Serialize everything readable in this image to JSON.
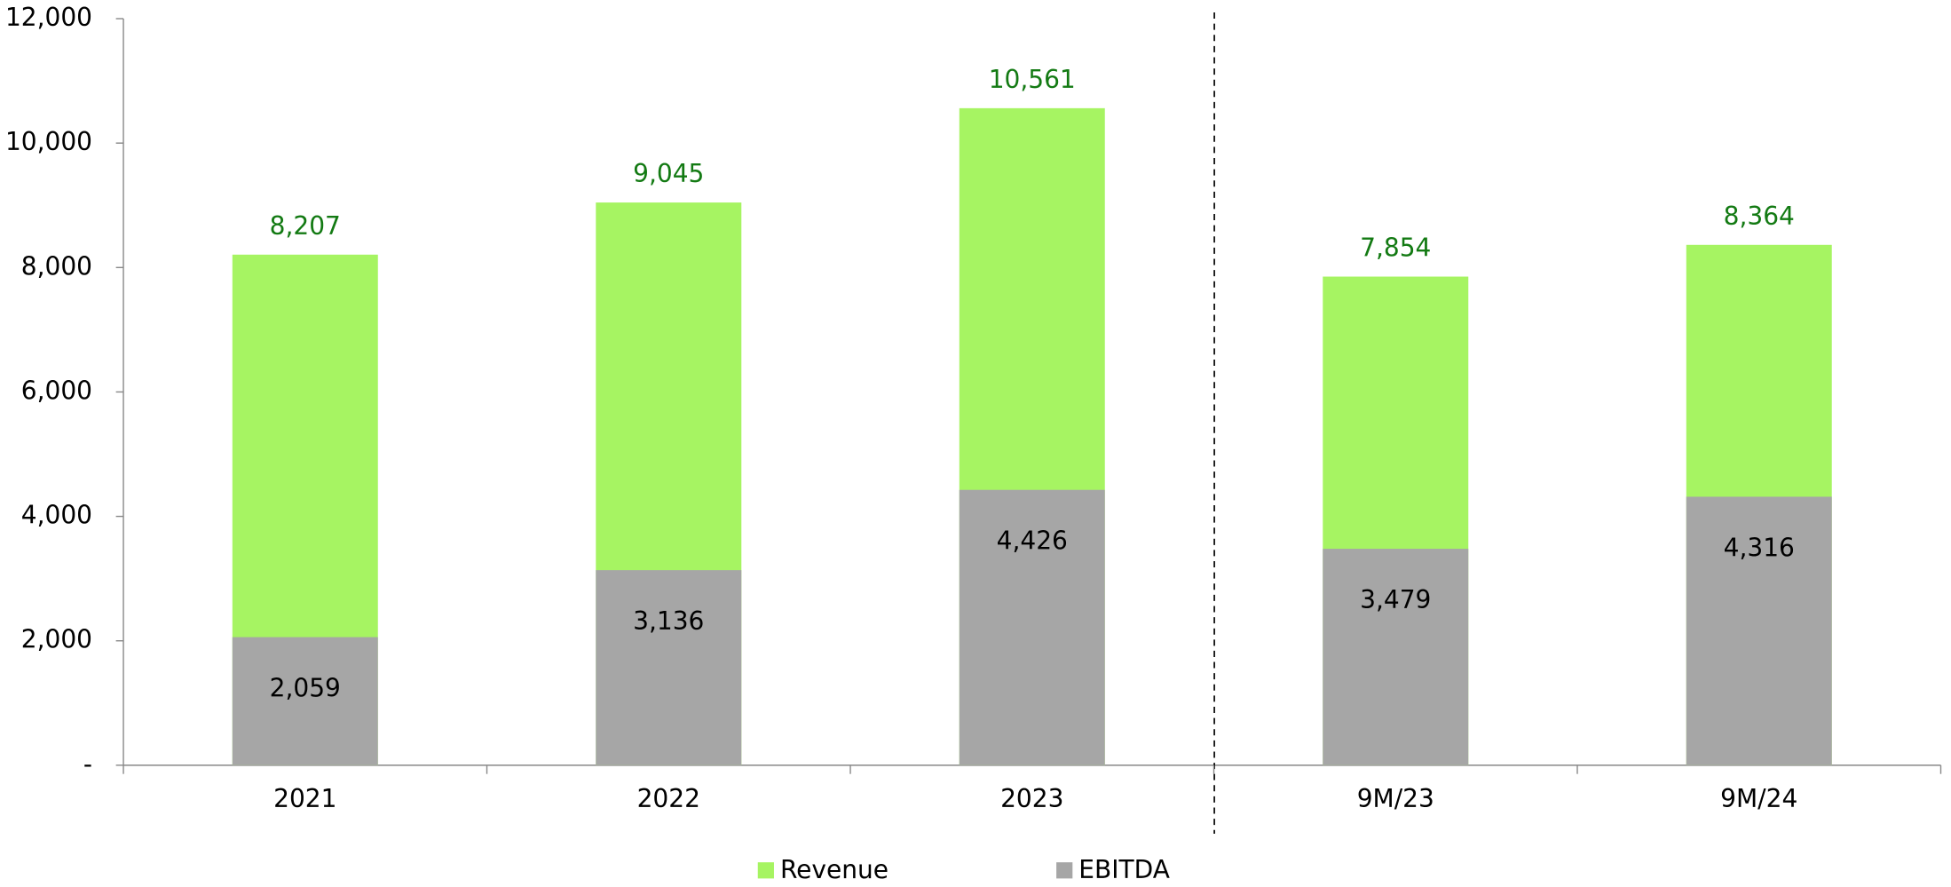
{
  "chart_data": {
    "type": "bar",
    "categories": [
      "2021",
      "2022",
      "2023",
      "9M/23",
      "9M/24"
    ],
    "series": [
      {
        "name": "Revenue",
        "color": "#a6f462",
        "values": [
          8207,
          9045,
          10561,
          7854,
          8364
        ],
        "value_labels": [
          "8,207",
          "9,045",
          "10,561",
          "7,854",
          "8,364"
        ]
      },
      {
        "name": "EBITDA",
        "color": "#a6a6a6",
        "values": [
          2059,
          3136,
          4426,
          3479,
          4316
        ],
        "value_labels": [
          "2,059",
          "3,136",
          "4,426",
          "3,479",
          "4,316"
        ]
      }
    ],
    "ylim": [
      0,
      12000
    ],
    "yticks": [
      {
        "value": 0,
        "label": "-"
      },
      {
        "value": 2000,
        "label": "2,000"
      },
      {
        "value": 4000,
        "label": "4,000"
      },
      {
        "value": 6000,
        "label": "6,000"
      },
      {
        "value": 8000,
        "label": "8,000"
      },
      {
        "value": 10000,
        "label": "10,000"
      },
      {
        "value": 12000,
        "label": "12,000"
      }
    ],
    "legend": "bottom"
  }
}
